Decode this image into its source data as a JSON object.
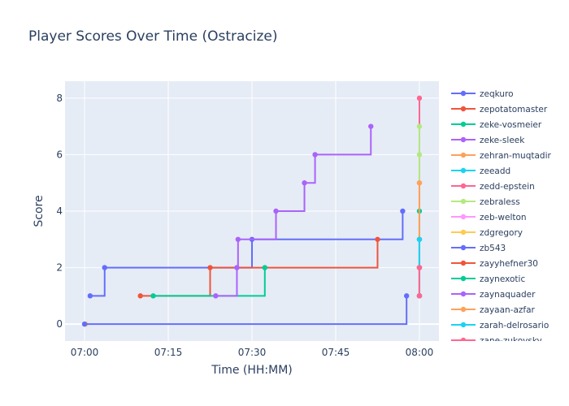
{
  "chart_data": {
    "type": "line",
    "line_shape": "hv",
    "title": "Player Scores Over Time (Ostracize)",
    "xlabel": "Time (HH:MM)",
    "ylabel": "Score",
    "x_units": "minutes after 07:00",
    "xlim": [
      -3.5,
      63.5
    ],
    "ylim": [
      -0.6,
      8.6
    ],
    "xticks": [
      {
        "v": 0,
        "label": "07:00"
      },
      {
        "v": 15,
        "label": "07:15"
      },
      {
        "v": 30,
        "label": "07:30"
      },
      {
        "v": 45,
        "label": "07:45"
      },
      {
        "v": 60,
        "label": "08:00"
      }
    ],
    "yticks": [
      {
        "v": 0,
        "label": "0"
      },
      {
        "v": 2,
        "label": "2"
      },
      {
        "v": 4,
        "label": "4"
      },
      {
        "v": 6,
        "label": "6"
      },
      {
        "v": 8,
        "label": "8"
      }
    ],
    "grid": true,
    "legend_position": "right",
    "series": [
      {
        "name": "zeqkuro",
        "color": "#636efa",
        "x": [
          1,
          3.6,
          30,
          57
        ],
        "y": [
          1,
          2,
          3,
          4
        ]
      },
      {
        "name": "zepotatomaster",
        "color": "#EF553B",
        "x": [
          10,
          22.5,
          52.5
        ],
        "y": [
          1,
          2,
          3
        ]
      },
      {
        "name": "zeke-vosmeier",
        "color": "#00cc96",
        "x": [
          12.3,
          32.3
        ],
        "y": [
          1,
          2
        ]
      },
      {
        "name": "zeke-sleek",
        "color": "#ab63fa",
        "x": [
          23.5,
          27.3,
          27.5,
          34.3,
          39.4,
          41.3,
          51.3
        ],
        "y": [
          1,
          2,
          3,
          4,
          5,
          6,
          7
        ]
      },
      {
        "name": "zehran-muqtadir",
        "color": "#FFA15A",
        "x": [
          60,
          60
        ],
        "y": [
          1,
          5
        ]
      },
      {
        "name": "zeeadd",
        "color": "#19d3f3",
        "x": [
          60,
          60
        ],
        "y": [
          1,
          3
        ]
      },
      {
        "name": "zedd-epstein",
        "color": "#FF6692",
        "x": [
          60,
          60,
          60
        ],
        "y": [
          1,
          2,
          8
        ]
      },
      {
        "name": "zebraless",
        "color": "#B6E880",
        "x": [
          60,
          60,
          60
        ],
        "y": [
          1,
          6,
          7
        ]
      },
      {
        "name": "zeb-welton",
        "color": "#FF97FF",
        "x": [
          60,
          60
        ],
        "y": [
          1,
          2
        ]
      },
      {
        "name": "zdgregory",
        "color": "#FECB52",
        "x": [
          0.2
        ],
        "y": [
          0
        ]
      },
      {
        "name": "zb543",
        "color": "#636efa",
        "x": [
          0,
          57.7
        ],
        "y": [
          0,
          1
        ]
      },
      {
        "name": "zayyhefner30",
        "color": "#EF553B",
        "x": [
          60,
          60
        ],
        "y": [
          1,
          2
        ]
      },
      {
        "name": "zaynexotic",
        "color": "#00cc96",
        "x": [
          60,
          60
        ],
        "y": [
          1,
          4
        ]
      },
      {
        "name": "zaynaquader",
        "color": "#ab63fa",
        "x": [
          60,
          60
        ],
        "y": [
          1,
          3
        ]
      },
      {
        "name": "zayaan-azfar",
        "color": "#FFA15A",
        "x": [
          60,
          60
        ],
        "y": [
          1,
          5
        ]
      },
      {
        "name": "zarah-delrosario",
        "color": "#19d3f3",
        "x": [
          60,
          60
        ],
        "y": [
          1,
          3
        ]
      },
      {
        "name": "zane-zukovsky",
        "color": "#FF6692",
        "x": [
          60,
          60
        ],
        "y": [
          1,
          2
        ]
      }
    ]
  }
}
